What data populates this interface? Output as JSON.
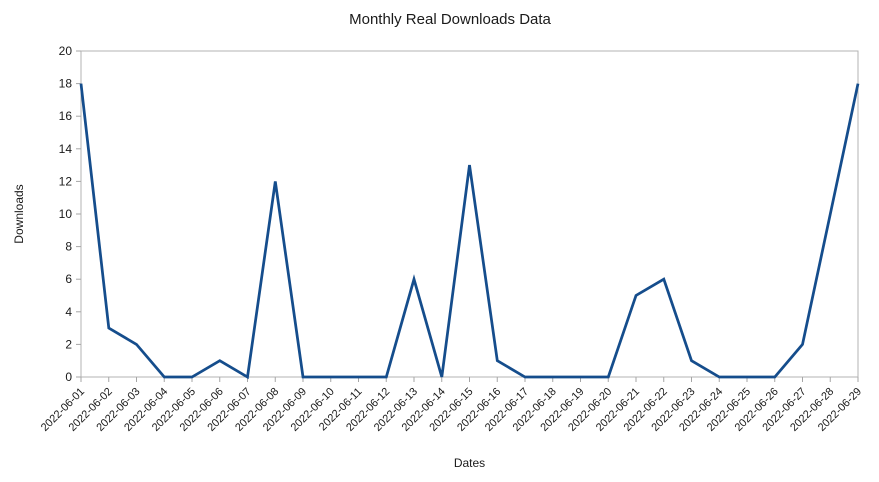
{
  "chart_data": {
    "type": "line",
    "title": "Monthly Real Downloads Data",
    "xlabel": "Dates",
    "ylabel": "Downloads",
    "x": [
      "2022-06-01",
      "2022-06-02",
      "2022-06-03",
      "2022-06-04",
      "2022-06-05",
      "2022-06-06",
      "2022-06-07",
      "2022-06-08",
      "2022-06-09",
      "2022-06-10",
      "2022-06-11",
      "2022-06-12",
      "2022-06-13",
      "2022-06-14",
      "2022-06-15",
      "2022-06-16",
      "2022-06-17",
      "2022-06-18",
      "2022-06-19",
      "2022-06-20",
      "2022-06-21",
      "2022-06-22",
      "2022-06-23",
      "2022-06-24",
      "2022-06-25",
      "2022-06-26",
      "2022-06-27",
      "2022-06-28",
      "2022-06-29"
    ],
    "series": [
      {
        "name": "Downloads",
        "values": [
          18,
          3,
          2,
          0,
          0,
          1,
          0,
          12,
          0,
          0,
          0,
          0,
          6,
          0,
          13,
          1,
          0,
          0,
          0,
          0,
          5,
          6,
          1,
          0,
          0,
          0,
          2,
          10,
          18
        ]
      }
    ],
    "ylim": [
      0,
      20
    ],
    "ytick_step": 2,
    "yticks": [
      0,
      2,
      4,
      6,
      8,
      10,
      12,
      14,
      16,
      18,
      20
    ],
    "grid": false,
    "legend_position": "none",
    "x_tick_rotation_deg": 45
  },
  "colors": {
    "line": "#154d8c",
    "frame": "#b3b3b3",
    "tick": "#a6a6a6",
    "text": "#1a1a1a",
    "background": "#ffffff"
  }
}
